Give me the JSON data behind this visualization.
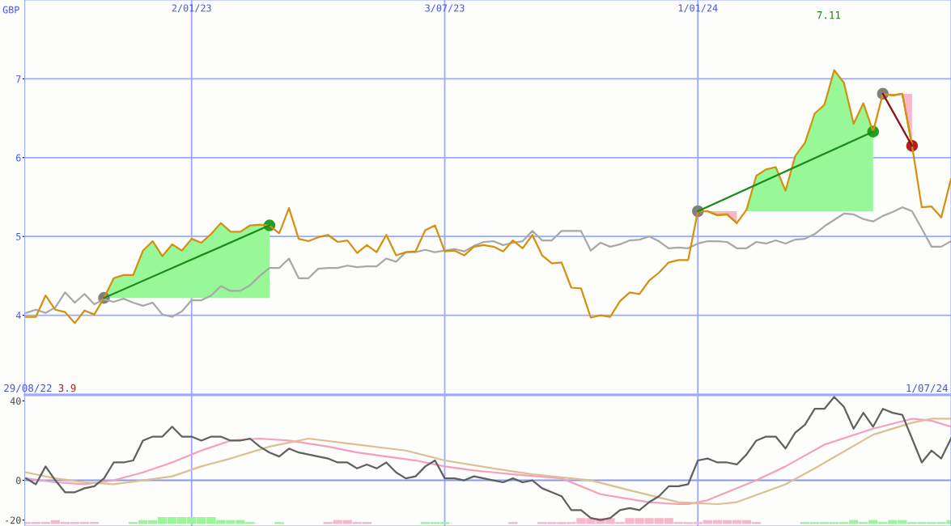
{
  "chart_data": [
    {
      "type": "line",
      "ylabel": "GBP",
      "xlim": [
        "2022-09-04",
        "2024-07-01"
      ],
      "xticks": [
        {
          "value": "2023-01-02",
          "label": "2/01/23"
        },
        {
          "value": "2023-07-03",
          "label": "3/07/23"
        },
        {
          "value": "2024-01-01",
          "label": "1/01/24"
        }
      ],
      "ylim": [
        3,
        8
      ],
      "yticks": [
        4,
        5,
        6,
        7
      ],
      "grid": true,
      "annotations": [
        "7.11"
      ],
      "x": [
        "2022-09-05",
        "2022-09-12",
        "2022-09-19",
        "2022-09-26",
        "2022-10-03",
        "2022-10-10",
        "2022-10-17",
        "2022-10-24",
        "2022-10-31",
        "2022-11-07",
        "2022-11-14",
        "2022-11-21",
        "2022-11-28",
        "2022-12-05",
        "2022-12-12",
        "2022-12-19",
        "2022-12-26",
        "2023-01-02",
        "2023-01-09",
        "2023-01-16",
        "2023-01-23",
        "2023-01-30",
        "2023-02-06",
        "2023-02-13",
        "2023-02-20",
        "2023-02-27",
        "2023-03-06",
        "2023-03-13",
        "2023-03-20",
        "2023-03-27",
        "2023-04-03",
        "2023-04-10",
        "2023-04-17",
        "2023-04-24",
        "2023-05-01",
        "2023-05-08",
        "2023-05-15",
        "2023-05-22",
        "2023-05-29",
        "2023-06-05",
        "2023-06-12",
        "2023-06-19",
        "2023-06-26",
        "2023-07-03",
        "2023-07-10",
        "2023-07-17",
        "2023-07-24",
        "2023-07-31",
        "2023-08-07",
        "2023-08-14",
        "2023-08-21",
        "2023-08-28",
        "2023-09-04",
        "2023-09-11",
        "2023-09-18",
        "2023-09-25",
        "2023-10-02",
        "2023-10-09",
        "2023-10-16",
        "2023-10-23",
        "2023-10-30",
        "2023-11-06",
        "2023-11-13",
        "2023-11-20",
        "2023-11-27",
        "2023-12-04",
        "2023-12-11",
        "2023-12-18",
        "2023-12-25",
        "2024-01-01",
        "2024-01-08",
        "2024-01-15",
        "2024-01-22",
        "2024-01-29",
        "2024-02-05",
        "2024-02-12",
        "2024-02-19",
        "2024-02-26",
        "2024-03-04",
        "2024-03-11",
        "2024-03-18",
        "2024-03-25",
        "2024-04-01",
        "2024-04-08",
        "2024-04-15",
        "2024-04-22",
        "2024-04-29",
        "2024-05-06",
        "2024-05-13",
        "2024-05-20",
        "2024-05-27",
        "2024-06-03",
        "2024-06-10",
        "2024-06-17",
        "2024-06-24",
        "2024-07-01"
      ],
      "series": [
        {
          "color": "#a8a8a8",
          "values": [
            4.03,
            4.07,
            4.03,
            4.1,
            4.29,
            4.16,
            4.27,
            4.14,
            4.2,
            4.17,
            4.21,
            4.16,
            4.12,
            4.16,
            4.01,
            3.98,
            4.05,
            4.19,
            4.19,
            4.25,
            4.37,
            4.31,
            4.31,
            4.38,
            4.5,
            4.6,
            4.6,
            4.72,
            4.47,
            4.47,
            4.59,
            4.6,
            4.6,
            4.63,
            4.61,
            4.62,
            4.62,
            4.72,
            4.68,
            4.8,
            4.8,
            4.83,
            4.8,
            4.82,
            4.84,
            4.81,
            4.88,
            4.93,
            4.94,
            4.89,
            4.92,
            4.94,
            5.07,
            4.95,
            4.95,
            5.07,
            5.07,
            5.07,
            4.82,
            4.92,
            4.87,
            4.9,
            4.95,
            4.96,
            5.0,
            4.94,
            4.85,
            4.86,
            4.85,
            4.91,
            4.94,
            4.94,
            4.93,
            4.85,
            4.85,
            4.93,
            4.91,
            4.95,
            4.91,
            4.96,
            4.97,
            5.03,
            5.13,
            5.21,
            5.29,
            5.28,
            5.22,
            5.19,
            5.26,
            5.31,
            5.37,
            5.32,
            5.1,
            4.87,
            4.87,
            4.94
          ]
        },
        {
          "color": "#d4900f",
          "lower": [
            null,
            null,
            null,
            null,
            null,
            null,
            null,
            null,
            4.22,
            4.22,
            4.22,
            4.22,
            4.22,
            4.22,
            4.22,
            4.22,
            4.22,
            4.22,
            4.22,
            4.22,
            4.22,
            4.22,
            4.22,
            4.22,
            4.22,
            4.22,
            null,
            null,
            null,
            null,
            null,
            null,
            null,
            null,
            null,
            null,
            null,
            null,
            null,
            null,
            null,
            null,
            null,
            null,
            null,
            null,
            null,
            null,
            null,
            null,
            null,
            null,
            null,
            null,
            null,
            null,
            null,
            null,
            null,
            null,
            null,
            null,
            null,
            null,
            null,
            null,
            null,
            null,
            null,
            null,
            null,
            null,
            null,
            null,
            5.32,
            5.32,
            5.32,
            5.32,
            5.32,
            5.32,
            5.32,
            5.32,
            5.32,
            5.32,
            5.32,
            5.32,
            5.32,
            5.32,
            null,
            null,
            null,
            null,
            null,
            null,
            null,
            null
          ],
          "upper": [
            null,
            null,
            null,
            null,
            null,
            null,
            null,
            null,
            4.22,
            4.47,
            4.51,
            4.51,
            4.82,
            4.94,
            4.75,
            4.9,
            4.82,
            4.97,
            4.92,
            5.03,
            5.17,
            5.06,
            5.06,
            5.14,
            5.15,
            5.14,
            null,
            null,
            null,
            null,
            null,
            null,
            null,
            null,
            null,
            null,
            null,
            null,
            null,
            null,
            null,
            null,
            null,
            null,
            null,
            null,
            null,
            null,
            null,
            null,
            null,
            null,
            null,
            null,
            null,
            null,
            null,
            null,
            null,
            null,
            null,
            null,
            null,
            null,
            null,
            null,
            null,
            null,
            null,
            null,
            null,
            null,
            null,
            null,
            5.34,
            5.77,
            5.85,
            5.88,
            5.58,
            6.02,
            6.19,
            6.56,
            6.67,
            7.11,
            6.95,
            6.43,
            6.69,
            6.33,
            null,
            null,
            null,
            null,
            null,
            null,
            null,
            null
          ],
          "colors": [
            null,
            null,
            null,
            null,
            null,
            null,
            null,
            null,
            "#98f898",
            "#98f898",
            "#98f898",
            "#98f898",
            "#98f898",
            "#98f898",
            "#98f898",
            "#98f898",
            "#98f898",
            "#98f898",
            "#98f898",
            "#98f898",
            "#98f898",
            "#98f898",
            "#98f898",
            "#98f898",
            "#98f898",
            "#98f898",
            null,
            null,
            null,
            null,
            null,
            null,
            null,
            null,
            null,
            null,
            null,
            null,
            null,
            null,
            null,
            null,
            null,
            null,
            null,
            null,
            null,
            null,
            null,
            null,
            null,
            null,
            null,
            null,
            null,
            null,
            null,
            null,
            null,
            null,
            null,
            null,
            null,
            null,
            null,
            null,
            null,
            null,
            null,
            null,
            null,
            null,
            null,
            null,
            "#98f898",
            "#98f898",
            "#98f898",
            "#98f898",
            "#98f898",
            "#98f898",
            "#98f898",
            "#98f898",
            "#98f898",
            "#98f898",
            "#98f898",
            "#98f898",
            "#98f898",
            "#98f898",
            null,
            null,
            null,
            null,
            null,
            null,
            null,
            null
          ],
          "values": [
            3.98,
            3.98,
            4.25,
            4.07,
            4.04,
            3.9,
            4.06,
            4.01,
            4.22,
            4.47,
            4.51,
            4.51,
            4.82,
            4.94,
            4.75,
            4.9,
            4.82,
            4.97,
            4.92,
            5.03,
            5.17,
            5.06,
            5.06,
            5.14,
            5.15,
            5.14,
            5.04,
            5.36,
            4.97,
            4.94,
            4.99,
            5.02,
            4.93,
            4.95,
            4.79,
            4.89,
            4.8,
            5.02,
            4.76,
            4.8,
            4.81,
            5.08,
            5.14,
            4.81,
            4.82,
            4.76,
            4.87,
            4.89,
            4.87,
            4.81,
            4.95,
            4.85,
            5.02,
            4.76,
            4.66,
            4.67,
            4.35,
            4.34,
            3.97,
            4.0,
            3.98,
            4.18,
            4.29,
            4.27,
            4.44,
            4.54,
            4.67,
            4.7,
            4.7,
            5.32,
            5.32,
            5.27,
            5.28,
            5.17,
            5.34,
            5.77,
            5.85,
            5.88,
            5.58,
            6.02,
            6.19,
            6.56,
            6.67,
            7.11,
            6.95,
            6.43,
            6.69,
            6.33,
            6.81,
            6.79,
            6.81,
            6.15,
            5.37,
            5.38,
            5.24,
            5.73
          ]
        },
        {
          "color": "#d4900f",
          "x": [
            "2024-01-08",
            "2024-01-15",
            "2024-01-22",
            "2024-01-29"
          ],
          "values": [
            5.32,
            5.27,
            5.28,
            5.17
          ],
          "lower": [
            5.32,
            5.27,
            5.28,
            5.17
          ],
          "upper": [
            5.32,
            5.32,
            5.32,
            5.32
          ],
          "colors": [
            "#f8b8cc",
            "#f8b8cc",
            "#f8b8cc",
            "#f8b8cc"
          ]
        },
        {
          "color": "#d4900f",
          "x": [
            "2024-05-13",
            "2024-05-20",
            "2024-05-27",
            "2024-06-03"
          ],
          "values": [
            6.81,
            6.79,
            6.81,
            6.15
          ],
          "lower": [
            6.81,
            6.79,
            6.81,
            6.15
          ],
          "upper": [
            6.81,
            6.81,
            6.81,
            6.81
          ],
          "colors": [
            "#f8b8cc",
            "#f8b8cc",
            "#f8b8cc",
            "#f8b8cc"
          ]
        },
        {
          "color": "#1a8a1a",
          "x": [
            "2022-10-31",
            "2023-02-27"
          ],
          "values": [
            4.22,
            5.14
          ]
        },
        {
          "color": "#1a8a1a",
          "x": [
            "2024-01-01",
            "2024-05-06"
          ],
          "values": [
            5.32,
            6.33
          ]
        },
        {
          "color": "#8b1010",
          "x": [
            "2024-05-13",
            "2024-06-03"
          ],
          "values": [
            6.81,
            6.15
          ]
        },
        {
          "type": "scatter",
          "marker": "circle",
          "color": "#808080",
          "x": [
            "2022-10-31",
            "2024-01-01",
            "2024-05-13"
          ],
          "values": [
            4.22,
            5.32,
            6.81
          ]
        },
        {
          "type": "scatter",
          "marker": "circle",
          "color": "#22a022",
          "x": [
            "2023-02-27",
            "2024-05-06"
          ],
          "values": [
            5.14,
            6.33
          ]
        },
        {
          "type": "scatter",
          "marker": "circle",
          "color": "#b02020",
          "x": [
            "2024-06-03"
          ],
          "values": [
            6.15
          ]
        }
      ]
    },
    {
      "type": "line",
      "xlim": [
        "2022-09-04",
        "2024-07-01"
      ],
      "xticks": [
        {
          "value": "2023-01-02",
          "label": null
        },
        {
          "value": "2023-07-03",
          "label": null
        },
        {
          "value": "2024-01-01",
          "label": null
        }
      ],
      "ylim": [
        -23,
        43
      ],
      "yticks": [
        40,
        0,
        -20
      ],
      "grid": "x",
      "tick_labels": "y",
      "ref_lines": [
        {
          "axis": "y",
          "value": 0,
          "color": "#8899ee"
        }
      ],
      "annotations": [
        "29/08/22",
        "3.9",
        "1/07/24"
      ],
      "x": [
        "2022-09-05",
        "2022-09-12",
        "2022-09-19",
        "2022-09-26",
        "2022-10-03",
        "2022-10-10",
        "2022-10-17",
        "2022-10-24",
        "2022-10-31",
        "2022-11-07",
        "2022-11-14",
        "2022-11-21",
        "2022-11-28",
        "2022-12-05",
        "2022-12-12",
        "2022-12-19",
        "2022-12-26",
        "2023-01-02",
        "2023-01-09",
        "2023-01-16",
        "2023-01-23",
        "2023-01-30",
        "2023-02-06",
        "2023-02-13",
        "2023-02-20",
        "2023-02-27",
        "2023-03-06",
        "2023-03-13",
        "2023-03-20",
        "2023-03-27",
        "2023-04-03",
        "2023-04-10",
        "2023-04-17",
        "2023-04-24",
        "2023-05-01",
        "2023-05-08",
        "2023-05-15",
        "2023-05-22",
        "2023-05-29",
        "2023-06-05",
        "2023-06-12",
        "2023-06-19",
        "2023-06-26",
        "2023-07-03",
        "2023-07-10",
        "2023-07-17",
        "2023-07-24",
        "2023-07-31",
        "2023-08-07",
        "2023-08-14",
        "2023-08-21",
        "2023-08-28",
        "2023-09-04",
        "2023-09-11",
        "2023-09-18",
        "2023-09-25",
        "2023-10-02",
        "2023-10-09",
        "2023-10-16",
        "2023-10-23",
        "2023-10-30",
        "2023-11-06",
        "2023-11-13",
        "2023-11-20",
        "2023-11-27",
        "2023-12-04",
        "2023-12-11",
        "2023-12-18",
        "2023-12-25",
        "2024-01-01",
        "2024-01-08",
        "2024-01-15",
        "2024-01-22",
        "2024-01-29",
        "2024-02-05",
        "2024-02-12",
        "2024-02-19",
        "2024-02-26",
        "2024-03-04",
        "2024-03-11",
        "2024-03-18",
        "2024-03-25",
        "2024-04-01",
        "2024-04-08",
        "2024-04-15",
        "2024-04-22",
        "2024-04-29",
        "2024-05-06",
        "2024-05-13",
        "2024-05-20",
        "2024-05-27",
        "2024-06-03",
        "2024-06-10",
        "2024-06-17",
        "2024-06-24",
        "2024-07-01"
      ],
      "series": [
        {
          "type": "bar",
          "color": "#f8b8cc",
          "x": [
            "2022-09-05",
            "2022-09-12",
            "2022-09-19",
            "2022-09-26",
            "2022-10-03",
            "2022-10-10",
            "2022-10-17",
            "2022-10-24",
            "2023-04-10",
            "2023-04-17",
            "2023-04-24",
            "2023-05-01",
            "2023-05-08",
            "2023-08-21",
            "2023-09-11",
            "2023-09-18",
            "2023-09-25",
            "2023-10-02",
            "2023-10-09",
            "2023-10-16",
            "2023-10-23",
            "2023-10-30",
            "2023-11-06",
            "2023-11-13",
            "2023-11-20",
            "2023-11-27",
            "2023-12-04",
            "2023-12-11",
            "2023-12-18",
            "2023-12-25",
            "2024-01-01",
            "2024-01-08",
            "2024-01-15",
            "2024-01-22",
            "2024-01-29",
            "2024-02-05",
            "2024-02-12"
          ],
          "values": [
            1,
            1,
            1,
            2,
            1,
            1,
            1,
            1,
            1,
            2,
            2,
            1,
            1,
            1,
            1,
            1,
            1,
            1,
            3,
            3,
            3,
            3,
            1,
            3,
            3,
            3,
            3,
            3,
            1,
            1,
            1,
            2,
            2,
            2,
            2,
            2,
            1
          ],
          "base": [
            -22,
            -22,
            -22,
            -22,
            -22,
            -22,
            -22,
            -22,
            -22,
            -22,
            -22,
            -22,
            -22,
            -22,
            -22,
            -22,
            -22,
            -22,
            -22,
            -22,
            -22,
            -22,
            -22,
            -22,
            -22,
            -22,
            -22,
            -22,
            -22,
            -22,
            -22,
            -22,
            -22,
            -22,
            -22,
            -22,
            -22
          ]
        },
        {
          "type": "bar",
          "color": "#98f898",
          "x": [
            "2022-11-21",
            "2022-11-28",
            "2022-12-05",
            "2022-12-12",
            "2022-12-19",
            "2022-12-26",
            "2023-01-02",
            "2023-01-09",
            "2023-01-16",
            "2023-01-23",
            "2023-01-30",
            "2023-02-06",
            "2023-02-13",
            "2023-03-06",
            "2023-06-19",
            "2023-06-26",
            "2023-07-03",
            "2024-03-18",
            "2024-03-25",
            "2024-04-01",
            "2024-04-08",
            "2024-04-15",
            "2024-04-22",
            "2024-04-29",
            "2024-05-06",
            "2024-05-13",
            "2024-05-20",
            "2024-05-27",
            "2024-06-03",
            "2024-06-10",
            "2024-06-17",
            "2024-06-24",
            "2024-07-01"
          ],
          "values": [
            1,
            2,
            2,
            3.5,
            3.5,
            3.5,
            3.5,
            3.5,
            3.5,
            2,
            2,
            2,
            1,
            1,
            1,
            1,
            1,
            1,
            1,
            1,
            1,
            1,
            2,
            1,
            2,
            1,
            2,
            2,
            1,
            1,
            1,
            1,
            2
          ],
          "base": [
            -22,
            -22,
            -22,
            -22,
            -22,
            -22,
            -22,
            -22,
            -22,
            -22,
            -22,
            -22,
            -22,
            -22,
            -22,
            -22,
            -22,
            -22,
            -22,
            -22,
            -22,
            -22,
            -22,
            -22,
            -22,
            -22,
            -22,
            -22,
            -22,
            -22,
            -22,
            -22,
            -22
          ]
        },
        {
          "color": "#f4a0bc",
          "x": [
            "2022-09-05",
            "2022-09-26",
            "2022-10-17",
            "2022-11-07",
            "2022-11-28",
            "2022-12-19",
            "2023-01-09",
            "2023-01-30",
            "2023-02-20",
            "2023-03-13",
            "2023-04-10",
            "2023-05-01",
            "2023-05-22",
            "2023-06-12",
            "2023-07-03",
            "2023-07-24",
            "2023-08-07",
            "2023-08-21",
            "2023-09-25",
            "2023-10-23",
            "2023-11-27",
            "2023-12-18",
            "2023-12-25",
            "2024-01-08",
            "2024-02-12",
            "2024-03-04",
            "2024-04-01",
            "2024-05-06",
            "2024-06-03",
            "2024-06-17",
            "2024-07-01"
          ],
          "values": [
            1,
            -1,
            -2,
            0,
            4,
            9,
            15,
            20,
            21,
            20,
            17,
            14,
            12,
            10,
            7,
            5,
            4,
            3,
            1,
            -7,
            -11,
            -12,
            -12,
            -10,
            0,
            7,
            18,
            26,
            31,
            30,
            27
          ]
        },
        {
          "color": "#dcc090",
          "x": [
            "2022-09-05",
            "2022-09-26",
            "2022-10-17",
            "2022-11-07",
            "2022-11-28",
            "2022-12-19",
            "2023-01-09",
            "2023-01-30",
            "2023-02-27",
            "2023-03-20",
            "2023-03-27",
            "2023-05-01",
            "2023-06-05",
            "2023-07-03",
            "2023-08-07",
            "2023-09-04",
            "2023-10-16",
            "2023-11-13",
            "2023-12-18",
            "2024-01-15",
            "2024-01-29",
            "2024-03-04",
            "2024-03-25",
            "2024-05-06",
            "2024-06-03",
            "2024-06-17",
            "2024-07-01"
          ],
          "values": [
            4,
            1,
            -1,
            -2,
            0,
            2,
            7,
            11,
            17,
            20,
            21,
            18,
            15,
            10,
            6,
            3,
            0,
            -5,
            -11,
            -12,
            -11,
            -2,
            6,
            23,
            29,
            31,
            31
          ]
        },
        {
          "color": "#606060",
          "values": [
            1,
            -2,
            7,
            0,
            -6,
            -6,
            -4,
            -3,
            1,
            9,
            9,
            10,
            20,
            22,
            22,
            27,
            22,
            22,
            20,
            22,
            22,
            20,
            20,
            21,
            17,
            14,
            12,
            16,
            14,
            13,
            12,
            11,
            9,
            9,
            6,
            8,
            6,
            9,
            4,
            1,
            2,
            7,
            10,
            1,
            1,
            0,
            2,
            1,
            0,
            -1,
            1,
            -1,
            0,
            -4,
            -6,
            -8,
            -15,
            -15,
            -19,
            -20,
            -19,
            -15,
            -14,
            -15,
            -11,
            -8,
            -3,
            -3,
            -2,
            10,
            11,
            9,
            9,
            8,
            13,
            20,
            22,
            22,
            16,
            24,
            28,
            36,
            36,
            42,
            37,
            26,
            34,
            27,
            36,
            34,
            33,
            21,
            9,
            15,
            11,
            21
          ]
        }
      ]
    }
  ]
}
